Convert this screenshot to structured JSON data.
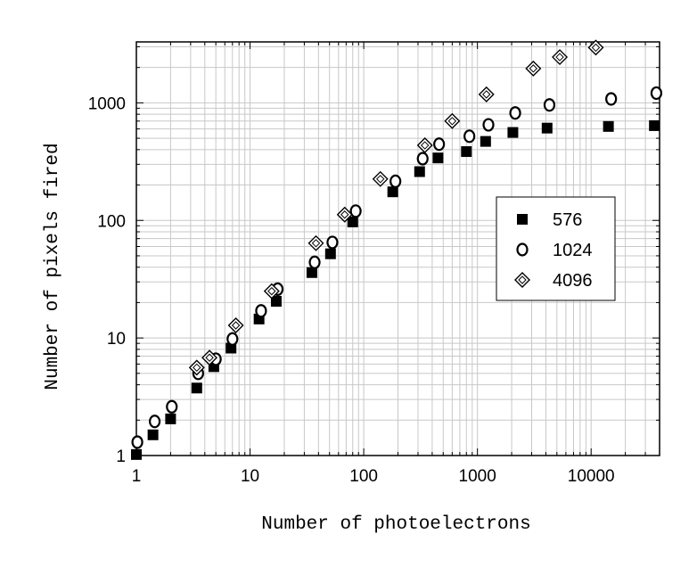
{
  "chart_data": {
    "type": "scatter",
    "title": "",
    "xlabel": "Number of photoelectrons",
    "ylabel": "Number of pixels fired",
    "xscale": "log",
    "yscale": "log",
    "xlim": [
      1,
      40000
    ],
    "ylim": [
      1,
      3300
    ],
    "grid": true,
    "legend_position": "right",
    "x_tick_labels": [
      "1",
      "10",
      "100",
      "1000",
      "10000"
    ],
    "y_tick_labels": [
      "1",
      "10",
      "100",
      "1000"
    ],
    "series": [
      {
        "name": "576",
        "marker": "square-filled",
        "points": [
          [
            1.0,
            1.02
          ],
          [
            1.4,
            1.5
          ],
          [
            2.0,
            2.05
          ],
          [
            3.4,
            3.75
          ],
          [
            4.8,
            5.7
          ],
          [
            6.8,
            8.2
          ],
          [
            12,
            14.5
          ],
          [
            17,
            20.5
          ],
          [
            35,
            36
          ],
          [
            51,
            52
          ],
          [
            80,
            97
          ],
          [
            180,
            175
          ],
          [
            310,
            260
          ],
          [
            450,
            340
          ],
          [
            800,
            385
          ],
          [
            1180,
            470
          ],
          [
            2050,
            560
          ],
          [
            4100,
            610
          ],
          [
            14200,
            630
          ],
          [
            36000,
            640
          ]
        ]
      },
      {
        "name": "1024",
        "marker": "circle-open",
        "points": [
          [
            1.02,
            1.3
          ],
          [
            1.45,
            1.95
          ],
          [
            2.05,
            2.6
          ],
          [
            3.5,
            5.0
          ],
          [
            5.0,
            6.6
          ],
          [
            7.0,
            9.8
          ],
          [
            12.5,
            17
          ],
          [
            17.5,
            26
          ],
          [
            37,
            44
          ],
          [
            53,
            65
          ],
          [
            85,
            120
          ],
          [
            190,
            215
          ],
          [
            330,
            335
          ],
          [
            460,
            445
          ],
          [
            850,
            520
          ],
          [
            1250,
            650
          ],
          [
            2150,
            820
          ],
          [
            4300,
            960
          ],
          [
            15000,
            1080
          ],
          [
            37500,
            1210
          ]
        ]
      },
      {
        "name": "4096",
        "marker": "diamond-open",
        "points": [
          [
            3.4,
            5.6
          ],
          [
            4.4,
            6.8
          ],
          [
            7.5,
            12.8
          ],
          [
            15.5,
            25
          ],
          [
            38,
            64
          ],
          [
            68,
            112
          ],
          [
            140,
            225
          ],
          [
            345,
            435
          ],
          [
            600,
            700
          ],
          [
            1200,
            1180
          ],
          [
            3100,
            1960
          ],
          [
            5300,
            2450
          ],
          [
            11000,
            2950
          ]
        ]
      }
    ]
  }
}
